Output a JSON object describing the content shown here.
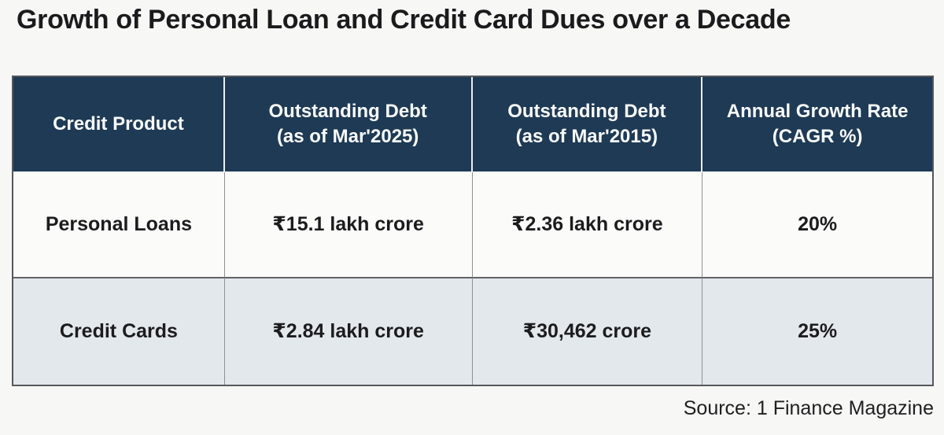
{
  "chart_data": {
    "type": "table",
    "title": "Growth of Personal Loan and Credit Card Dues over a Decade",
    "columns": [
      "Credit Product",
      "Outstanding Debt (as of Mar'2025)",
      "Outstanding Debt (as of Mar'2015)",
      "Annual Growth Rate (CAGR %)"
    ],
    "rows": [
      [
        "Personal Loans",
        "₹15.1 lakh crore",
        "₹2.36 lakh crore",
        "20%"
      ],
      [
        "Credit Cards",
        "₹2.84 lakh crore",
        "₹30,462 crore",
        "25%"
      ]
    ],
    "numeric": {
      "personal_loans": {
        "mar2025_lakh_crore": 15.1,
        "mar2015_lakh_crore": 2.36,
        "cagr_pct": 20
      },
      "credit_cards": {
        "mar2025_lakh_crore": 2.84,
        "mar2015_crore": 30462,
        "cagr_pct": 25
      }
    },
    "source": "Source: 1 Finance Magazine"
  },
  "table": {
    "header_display": [
      "Credit Product",
      "Outstanding Debt\n(as of Mar'2025)",
      "Outstanding Debt\n(as of Mar'2015)",
      "Annual Growth Rate\n(CAGR %)"
    ]
  },
  "colors": {
    "page_bg": "#f7f7f6",
    "header_bg": "#1e3a55",
    "header_text": "#fafbfc",
    "row_bg": "#fbfbfa",
    "row_alt_bg": "#e3e8ec",
    "border": "#56575b",
    "title_text": "#1b1b1d"
  }
}
